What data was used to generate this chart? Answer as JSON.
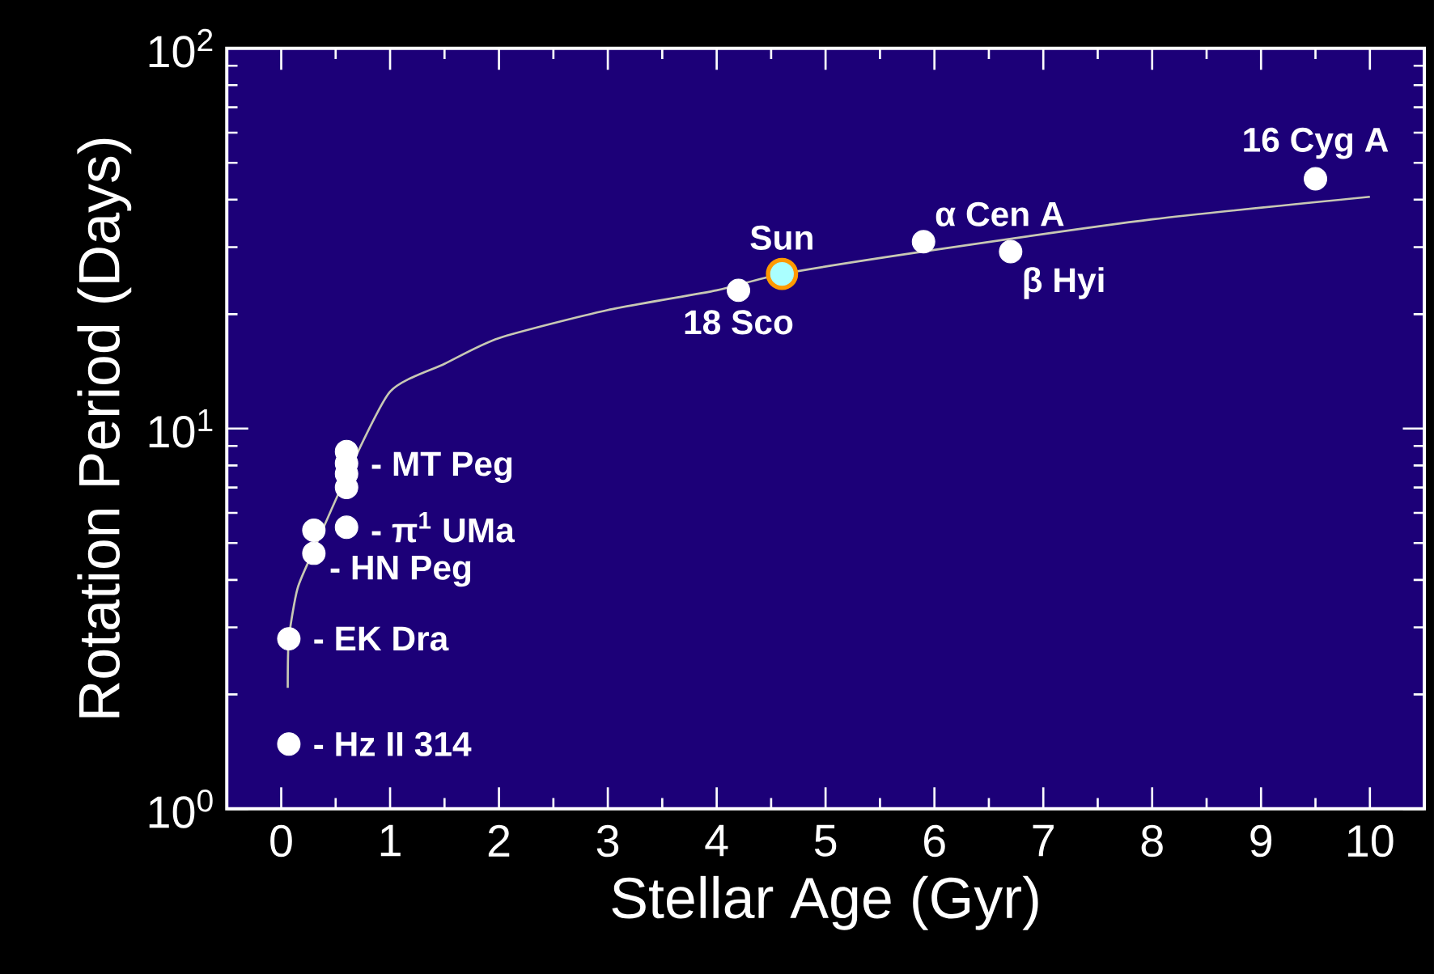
{
  "chart_data": {
    "type": "scatter",
    "xlabel": "Stellar Age (Gyr)",
    "ylabel": "Rotation Period (Days)",
    "log": "y",
    "grid": false,
    "xlim": [
      -0.5,
      10.5
    ],
    "xticks": [
      0,
      1,
      2,
      3,
      4,
      5,
      6,
      7,
      8,
      9,
      10
    ],
    "ylim": [
      1,
      100
    ],
    "yticks": [
      {
        "value": 1,
        "label": "10$^{0}$"
      },
      {
        "value": 10,
        "label": "10$^{1}$"
      },
      {
        "value": 100,
        "label": "10$^{2}$"
      }
    ],
    "series": [
      {
        "type": "line",
        "color": "#c8c8b4",
        "marker": "none",
        "x": [
          0.06,
          0.07,
          0.15,
          0.3,
          0.6,
          1,
          1.5,
          2,
          3,
          4,
          4.6,
          6,
          8,
          10
        ],
        "values": [
          2.08,
          2.8,
          3.8,
          4.8,
          7.5,
          12.5,
          14.8,
          17.3,
          20.5,
          23.1,
          25.5,
          29.5,
          35.5,
          40.7
        ]
      },
      {
        "color": "#ffffff",
        "marker": "circle",
        "x": [
          0.07,
          0.07,
          0.3,
          0.3,
          0.6,
          0.6,
          0.6,
          0.6,
          0.6,
          4.2,
          5.9,
          6.7,
          9.5
        ],
        "values": [
          1.48,
          2.8,
          4.7,
          5.4,
          5.5,
          7.0,
          7.6,
          8.1,
          8.7,
          23.1,
          31,
          29.2,
          45.4
        ]
      },
      {
        "color": "#ff9900",
        "marker": "circle",
        "x": [
          4.6
        ],
        "values": [
          25.5
        ]
      }
    ],
    "annotations": [
      {
        "text": "16 Cyg A",
        "x": 9.5,
        "y": 45.4
      },
      {
        "text": "α Cen A",
        "x": 5.9,
        "y": 31
      },
      {
        "text": "Sun",
        "x": 4.6,
        "y": 25.5
      },
      {
        "text": "18 Sco",
        "x": 4.2,
        "y": 23.1
      },
      {
        "text": "β Hyi",
        "x": 6.7,
        "y": 29.2
      },
      {
        "text": "- MT Peg",
        "x": 0.6,
        "y": 7.9
      },
      {
        "text": "- π$^{1}$ UMa",
        "x": 0.6,
        "y": 5.5
      },
      {
        "text": "- HN Peg",
        "x": 0.3,
        "y": 4.7
      },
      {
        "text": "- EK Dra",
        "x": 0.07,
        "y": 2.8
      },
      {
        "text": "- Hz II 314",
        "x": 0.07,
        "y": 1.48
      }
    ]
  }
}
